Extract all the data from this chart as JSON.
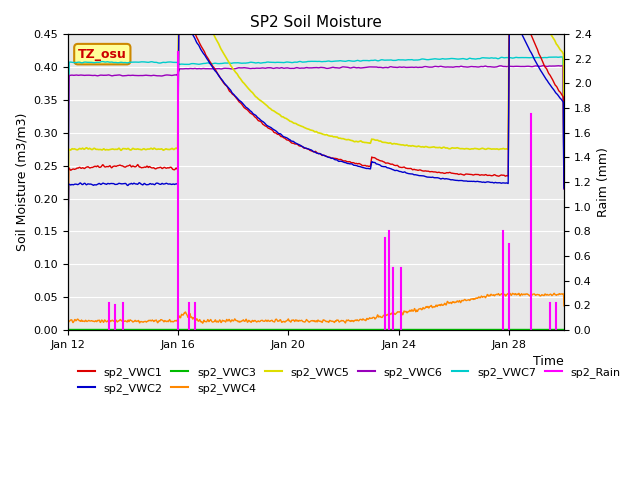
{
  "title": "SP2 Soil Moisture",
  "xlabel": "Time",
  "ylabel_left": "Soil Moisture (m3/m3)",
  "ylabel_right": "Raim (mm)",
  "ylim_left": [
    0,
    0.45
  ],
  "ylim_right": [
    0,
    2.4
  ],
  "xlim": [
    0,
    18
  ],
  "background_color": "#e8e8e8",
  "annotation_text": "TZ_osu",
  "annotation_color": "#cc0000",
  "annotation_bg": "#ffff99",
  "annotation_border": "#cc8800",
  "colors": {
    "sp2_VWC1": "#dd0000",
    "sp2_VWC2": "#0000cc",
    "sp2_VWC3": "#00bb00",
    "sp2_VWC4": "#ff8800",
    "sp2_VWC5": "#dddd00",
    "sp2_VWC6": "#9900bb",
    "sp2_VWC7": "#00cccc",
    "sp2_Rain": "#ff00ff"
  },
  "xticks": [
    0,
    4,
    8,
    12,
    16
  ],
  "xticklabels": [
    "Jan 12",
    "Jan 16",
    "Jan 20",
    "Jan 24",
    "Jan 28"
  ],
  "yticks_left": [
    0.0,
    0.05,
    0.1,
    0.15,
    0.2,
    0.25,
    0.3,
    0.35,
    0.4,
    0.45
  ],
  "yticks_right": [
    0.0,
    0.2,
    0.4,
    0.6,
    0.8,
    1.0,
    1.2,
    1.4,
    1.6,
    1.8,
    2.0,
    2.2,
    2.4
  ],
  "legend_order": [
    "sp2_VWC1",
    "sp2_VWC2",
    "sp2_VWC3",
    "sp2_VWC4",
    "sp2_VWC5",
    "sp2_VWC6",
    "sp2_VWC7",
    "sp2_Rain"
  ]
}
